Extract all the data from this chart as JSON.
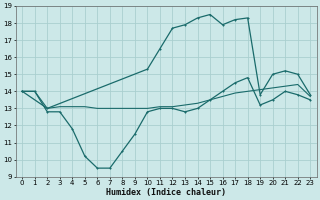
{
  "xlabel": "Humidex (Indice chaleur)",
  "bg_color": "#cce8e8",
  "grid_color": "#aacfcf",
  "line_color": "#1a6b6b",
  "xlim": [
    -0.5,
    23.5
  ],
  "ylim": [
    9,
    19
  ],
  "xticks": [
    0,
    1,
    2,
    3,
    4,
    5,
    6,
    7,
    8,
    9,
    10,
    11,
    12,
    13,
    14,
    15,
    16,
    17,
    18,
    19,
    20,
    21,
    22,
    23
  ],
  "yticks": [
    9,
    10,
    11,
    12,
    13,
    14,
    15,
    16,
    17,
    18,
    19
  ],
  "line_upper_x": [
    0,
    2,
    10,
    11,
    12,
    13,
    14,
    15,
    16,
    17,
    18,
    19,
    20,
    21,
    22,
    23
  ],
  "line_upper_y": [
    14,
    13,
    15.3,
    16.5,
    17.7,
    17.9,
    18.3,
    18.5,
    17.9,
    18.2,
    18.3,
    13.8,
    15.0,
    15.2,
    15.0,
    13.8
  ],
  "line_mid_x": [
    0,
    1,
    2,
    3,
    4,
    5,
    6,
    7,
    8,
    9,
    10,
    11,
    12,
    13,
    14,
    15,
    16,
    17,
    18,
    19,
    20,
    21,
    22,
    23
  ],
  "line_mid_y": [
    14,
    14,
    13,
    13.1,
    13.1,
    13.1,
    13.0,
    13.0,
    13.0,
    13.0,
    13.0,
    13.1,
    13.1,
    13.2,
    13.3,
    13.5,
    13.7,
    13.9,
    14.0,
    14.1,
    14.2,
    14.3,
    14.4,
    13.7
  ],
  "line_lower_x": [
    0,
    1,
    2,
    3,
    4,
    5,
    6,
    7,
    8,
    9,
    10,
    11,
    12,
    13,
    14,
    15,
    16,
    17,
    18,
    19,
    20,
    21,
    22,
    23
  ],
  "line_lower_y": [
    14,
    14,
    12.8,
    12.8,
    11.8,
    10.2,
    9.5,
    9.5,
    10.5,
    11.5,
    12.8,
    13.0,
    13.0,
    12.8,
    13.0,
    13.5,
    14.0,
    14.5,
    14.8,
    13.2,
    13.5,
    14.0,
    13.8,
    13.5
  ]
}
